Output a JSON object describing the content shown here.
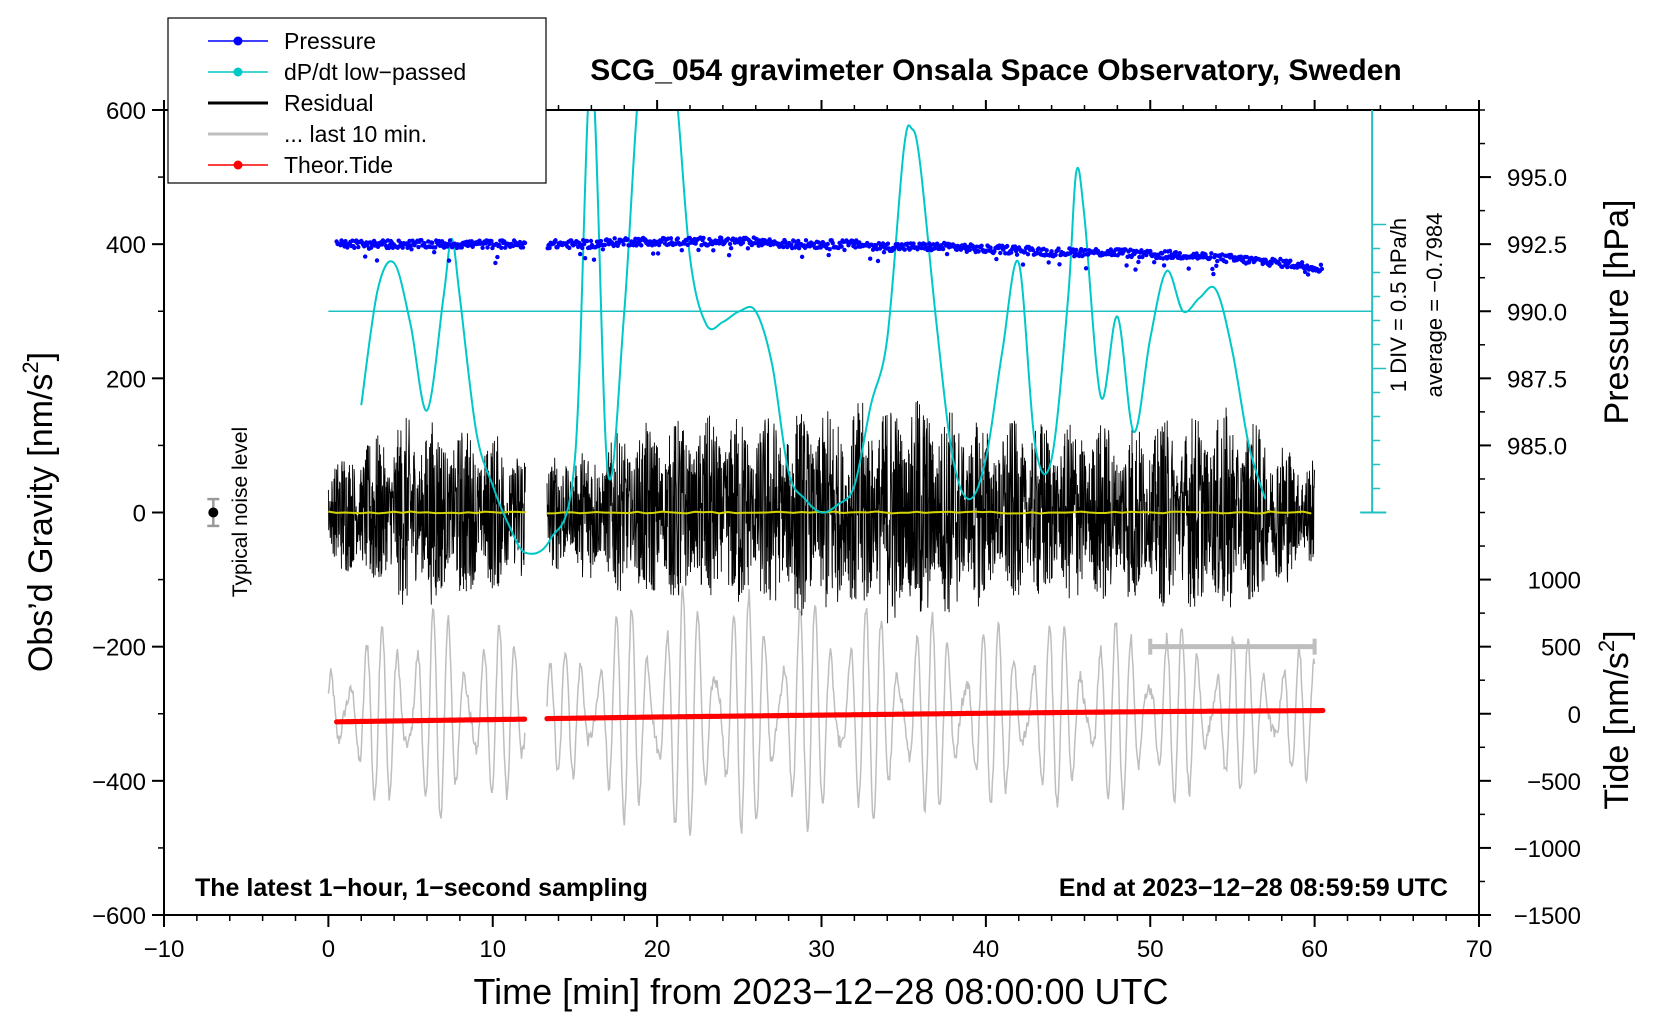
{
  "chart_data": {
    "type": "line",
    "title": "SCG_054 gravimeter Onsala Space Observatory, Sweden",
    "xlabel": "Time [min] from 2023−12−28 08:00:00 UTC",
    "ylabel_left": "Obs’d Gravity [nm/s",
    "ylabel_left_sup": "2",
    "ylabel_left_end": "]",
    "ylabel_right_pressure": "Pressure [hPa]",
    "ylabel_right_tide": "Tide [nm/s",
    "ylabel_right_tide_sup": "2",
    "ylabel_right_tide_end": "]",
    "xlim": [
      -10,
      70
    ],
    "ylim": [
      -600,
      600
    ],
    "x_ticks": [
      "−10",
      "0",
      "10",
      "20",
      "30",
      "40",
      "50",
      "60",
      "70"
    ],
    "x_tick_values": [
      -10,
      0,
      10,
      20,
      30,
      40,
      50,
      60,
      70
    ],
    "y_ticks": [
      "−600",
      "−400",
      "−200",
      "0",
      "200",
      "400",
      "600"
    ],
    "y_tick_values": [
      -600,
      -400,
      -200,
      0,
      200,
      400,
      600
    ],
    "pressure_axis": {
      "range": [
        982.5,
        997.5
      ],
      "ticks": [
        "985.0",
        "987.5",
        "990.0",
        "992.5",
        "995.0"
      ],
      "tick_values": [
        985.0,
        987.5,
        990.0,
        992.5,
        995.0
      ]
    },
    "tide_axis": {
      "range": [
        -1500,
        1500
      ],
      "ticks": [
        "1000",
        "500",
        "0",
        "−500",
        "−1000",
        "−1500"
      ],
      "tick_values": [
        1000,
        500,
        0,
        -500,
        -1000,
        -1500
      ]
    },
    "dpdt_scale_label": "1 DIV = 0.5 hPa/h",
    "dpdt_average_label": "average = −0.7984",
    "noise_label": "Typical noise level",
    "noise_marker": {
      "x": -7,
      "y": 0,
      "error": 20
    },
    "last10_bar": {
      "x_start": 50,
      "x_end": 60,
      "y": -200
    },
    "footer_left": "The latest 1−hour, 1−second sampling",
    "footer_right": "End at 2023−12−28 08:59:59 UTC",
    "legend": [
      {
        "label": "Pressure",
        "color": "#0000ff",
        "marker": true
      },
      {
        "label": "dP/dt low−passed",
        "color": "#00c8c8",
        "marker": true
      },
      {
        "label": "Residual",
        "color": "#000000",
        "marker": false
      },
      {
        "label": "... last 10 min.",
        "color": "#bebebe",
        "marker": false
      },
      {
        "label": "Theor.Tide",
        "color": "#ff0000",
        "marker": true
      }
    ],
    "series": [
      {
        "name": "Pressure",
        "color": "#0000ff",
        "unit": "hPa",
        "x": [
          0.5,
          2,
          4,
          6,
          8,
          10,
          12,
          13.5,
          16,
          18,
          20,
          22,
          24,
          26,
          28,
          30,
          32,
          34,
          36,
          38,
          40,
          42,
          44,
          46,
          48,
          50,
          52,
          54,
          56,
          58,
          60.5
        ],
        "y": [
          992.5,
          992.5,
          992.5,
          992.5,
          992.5,
          992.5,
          992.5,
          992.5,
          992.5,
          992.6,
          992.6,
          992.6,
          992.6,
          992.6,
          992.5,
          992.5,
          992.5,
          992.4,
          992.4,
          992.4,
          992.3,
          992.3,
          992.2,
          992.2,
          992.2,
          992.1,
          992.1,
          992.0,
          991.9,
          991.8,
          991.6
        ]
      },
      {
        "name": "dP/dt low−passed",
        "color": "#00c8c8",
        "unit": "hPa/h",
        "reference_level": 990.0,
        "x": [
          2,
          3,
          4,
          5,
          6,
          7,
          7.5,
          8,
          9,
          10,
          11,
          12,
          13.5,
          15,
          16,
          17,
          18,
          19,
          20,
          21,
          22,
          23,
          24,
          25,
          26,
          27,
          28,
          29,
          30,
          31,
          32,
          33,
          34,
          35,
          35.5,
          36,
          37,
          38,
          39,
          40,
          41,
          42,
          43,
          44,
          45,
          45.5,
          46,
          47,
          48,
          49,
          50,
          51,
          52,
          53,
          54,
          55,
          56,
          57
        ],
        "y": [
          986.5,
          990.8,
          991.8,
          989.5,
          986.3,
          990.5,
          992.7,
          990.5,
          985.5,
          983.5,
          982,
          981,
          981.5,
          984.5,
          999,
          984,
          990,
          999,
          999,
          999,
          992,
          989.5,
          989.6,
          990.0,
          990.0,
          988.0,
          984,
          983,
          982.5,
          982.8,
          983.5,
          986.5,
          989,
          996,
          996.8,
          995.5,
          989.5,
          984.5,
          983,
          984.5,
          988.5,
          991.8,
          985,
          984.5,
          990.5,
          995.2,
          993.5,
          986.8,
          989.8,
          985.5,
          989.0,
          991.5,
          990.0,
          990.5,
          990.8,
          988.5,
          985,
          983
        ]
      },
      {
        "name": "Residual",
        "color": "#000000",
        "unit": "nm/s2",
        "amplitude_envelope": {
          "x": [
            0,
            5,
            10,
            12,
            13,
            20,
            30,
            36,
            40,
            50,
            55,
            60
          ],
          "y": [
            80,
            150,
            120,
            110,
            80,
            140,
            160,
            180,
            140,
            140,
            160,
            80
          ]
        },
        "mean_line_y": 0,
        "gap": [
          12,
          13.3
        ]
      },
      {
        "name": "... last 10 min.",
        "color": "#bebebe",
        "unit": "nm/s2",
        "center_y": -300,
        "amplitude_envelope": {
          "x": [
            0,
            5,
            10,
            12,
            13,
            20,
            30,
            40,
            50,
            60
          ],
          "y": [
            80,
            180,
            140,
            120,
            80,
            200,
            180,
            140,
            150,
            100
          ]
        },
        "gap": [
          12,
          13.3
        ]
      },
      {
        "name": "Theor.Tide",
        "color": "#ff0000",
        "unit": "nm/s2",
        "x": [
          0.5,
          6,
          12,
          13.3,
          20,
          30,
          40,
          50,
          60.5
        ],
        "y": [
          -30,
          -25,
          -20,
          -18,
          -12,
          -5,
          2,
          8,
          12
        ],
        "gap": [
          12,
          13.3
        ]
      }
    ]
  }
}
